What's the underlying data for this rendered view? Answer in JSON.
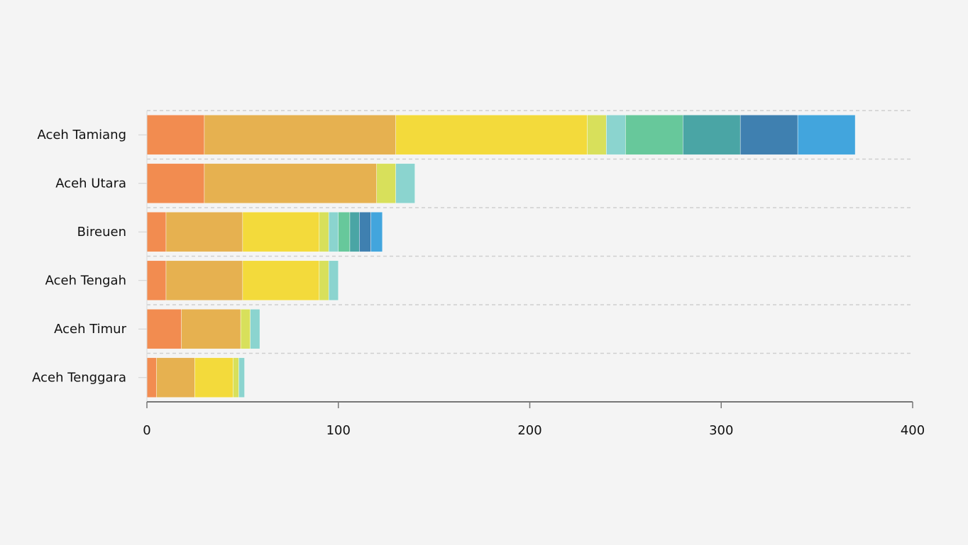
{
  "chart_data": {
    "type": "bar",
    "orientation": "horizontal",
    "stacked": true,
    "categories": [
      "Aceh Tamiang",
      "Aceh Utara",
      "Bireuen",
      "Aceh Tengah",
      "Aceh Timur",
      "Aceh Tenggara"
    ],
    "x_ticks": [
      "0",
      "100",
      "200",
      "300",
      "400"
    ],
    "xlim": [
      0,
      400
    ],
    "grid": true,
    "legend": "none",
    "title": "",
    "xlabel": "",
    "ylabel": "",
    "segment_colors": [
      "#f28c50",
      "#e6b150",
      "#f3da3b",
      "#d8e05b",
      "#8bd4cf",
      "#67c89b",
      "#4aa5a5",
      "#3f80b0",
      "#42a5dd"
    ],
    "series": [
      {
        "values": [
          30,
          30,
          10,
          10,
          18,
          5
        ]
      },
      {
        "values": [
          100,
          90,
          40,
          40,
          31,
          20
        ]
      },
      {
        "values": [
          100,
          0,
          40,
          40,
          0,
          20
        ]
      },
      {
        "values": [
          10,
          10,
          5,
          5,
          5,
          3
        ]
      },
      {
        "values": [
          10,
          10,
          5,
          5,
          5,
          3
        ]
      },
      {
        "values": [
          30,
          0,
          6,
          0,
          0,
          0
        ]
      },
      {
        "values": [
          30,
          0,
          5,
          0,
          0,
          0
        ]
      },
      {
        "values": [
          30,
          0,
          6,
          0,
          0,
          0
        ]
      },
      {
        "values": [
          30,
          0,
          6,
          0,
          0,
          0
        ]
      }
    ]
  }
}
